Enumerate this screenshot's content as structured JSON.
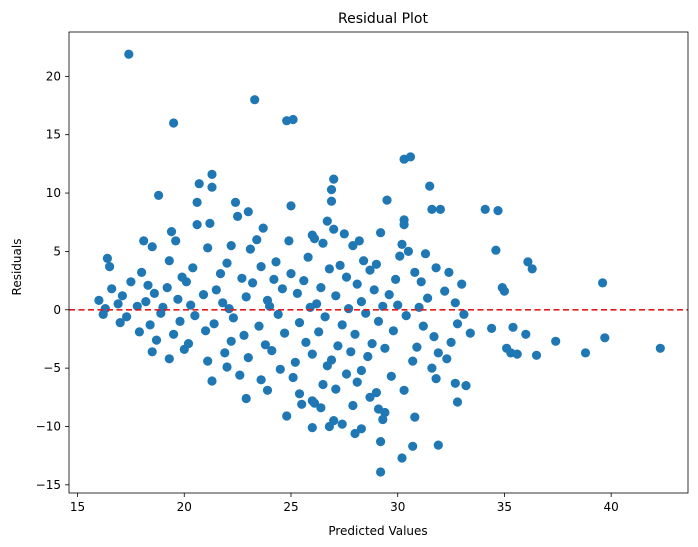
{
  "chart_data": {
    "type": "scatter",
    "title": "Residual Plot",
    "xlabel": "Predicted Values",
    "ylabel": "Residuals",
    "xlim": [
      14.6,
      43.6
    ],
    "ylim": [
      -15.7,
      23.8
    ],
    "x_ticks": [
      15,
      20,
      25,
      30,
      35,
      40
    ],
    "x_tick_labels": [
      "15",
      "20",
      "25",
      "30",
      "35",
      "40"
    ],
    "y_ticks": [
      -15,
      -10,
      -5,
      0,
      5,
      10,
      15,
      20
    ],
    "y_tick_labels": [
      "−15",
      "−10",
      "−5",
      "0",
      "5",
      "10",
      "15",
      "20"
    ],
    "grid": false,
    "point_color": "#1f77b4",
    "reference_line": {
      "y": 0,
      "style": "dashed",
      "color": "#e31a1c"
    },
    "series": [
      {
        "values_xy": [
          [
            17.4,
            21.9
          ],
          [
            23.3,
            18.0
          ],
          [
            24.8,
            16.2
          ],
          [
            25.1,
            16.3
          ],
          [
            19.5,
            16.0
          ],
          [
            30.3,
            12.9
          ],
          [
            30.6,
            13.1
          ],
          [
            21.3,
            11.6
          ],
          [
            27.0,
            11.2
          ],
          [
            21.3,
            10.5
          ],
          [
            20.7,
            10.8
          ],
          [
            26.9,
            10.3
          ],
          [
            31.5,
            10.6
          ],
          [
            18.8,
            9.8
          ],
          [
            26.9,
            9.3
          ],
          [
            22.4,
            9.2
          ],
          [
            29.5,
            9.4
          ],
          [
            20.6,
            9.2
          ],
          [
            25.0,
            8.9
          ],
          [
            32.0,
            8.6
          ],
          [
            31.6,
            8.6
          ],
          [
            34.1,
            8.6
          ],
          [
            34.7,
            8.5
          ],
          [
            22.5,
            8.0
          ],
          [
            23.0,
            8.4
          ],
          [
            23.7,
            7.0
          ],
          [
            26.7,
            7.6
          ],
          [
            30.3,
            7.7
          ],
          [
            30.3,
            7.3
          ],
          [
            21.2,
            7.4
          ],
          [
            27.0,
            6.9
          ],
          [
            20.6,
            7.3
          ],
          [
            19.4,
            6.7
          ],
          [
            29.2,
            6.6
          ],
          [
            26.0,
            6.4
          ],
          [
            26.1,
            6.1
          ],
          [
            27.5,
            6.5
          ],
          [
            28.2,
            5.9
          ],
          [
            23.4,
            6.0
          ],
          [
            24.9,
            5.9
          ],
          [
            19.6,
            5.9
          ],
          [
            18.1,
            5.9
          ],
          [
            18.5,
            5.4
          ],
          [
            22.2,
            5.5
          ],
          [
            23.1,
            5.2
          ],
          [
            30.2,
            5.6
          ],
          [
            34.6,
            5.1
          ],
          [
            27.9,
            5.5
          ],
          [
            21.1,
            5.3
          ],
          [
            26.5,
            5.7
          ],
          [
            30.5,
            5.0
          ],
          [
            30.1,
            4.6
          ],
          [
            31.3,
            4.8
          ],
          [
            16.4,
            4.4
          ],
          [
            19.3,
            4.2
          ],
          [
            22.0,
            4.0
          ],
          [
            24.3,
            4.1
          ],
          [
            28.4,
            4.2
          ],
          [
            25.8,
            4.5
          ],
          [
            36.1,
            4.1
          ],
          [
            16.5,
            3.7
          ],
          [
            36.3,
            3.5
          ],
          [
            20.4,
            3.6
          ],
          [
            23.6,
            3.7
          ],
          [
            27.3,
            3.8
          ],
          [
            29.0,
            3.9
          ],
          [
            31.8,
            3.6
          ],
          [
            32.4,
            3.2
          ],
          [
            18.0,
            3.2
          ],
          [
            21.7,
            3.1
          ],
          [
            25.0,
            3.1
          ],
          [
            26.8,
            3.5
          ],
          [
            28.7,
            3.4
          ],
          [
            30.8,
            3.2
          ],
          [
            19.9,
            2.8
          ],
          [
            22.7,
            2.7
          ],
          [
            24.2,
            2.6
          ],
          [
            27.6,
            2.8
          ],
          [
            29.9,
            2.6
          ],
          [
            17.5,
            2.4
          ],
          [
            18.3,
            2.1
          ],
          [
            20.1,
            2.4
          ],
          [
            23.2,
            2.3
          ],
          [
            25.6,
            2.5
          ],
          [
            28.1,
            2.2
          ],
          [
            31.1,
            2.4
          ],
          [
            33.0,
            2.2
          ],
          [
            39.6,
            2.3
          ],
          [
            16.6,
            1.8
          ],
          [
            19.2,
            1.9
          ],
          [
            21.5,
            1.7
          ],
          [
            24.6,
            1.8
          ],
          [
            26.4,
            1.9
          ],
          [
            28.9,
            1.7
          ],
          [
            32.2,
            1.6
          ],
          [
            34.9,
            1.9
          ],
          [
            35.0,
            1.6
          ],
          [
            17.1,
            1.2
          ],
          [
            18.6,
            1.4
          ],
          [
            20.9,
            1.3
          ],
          [
            22.9,
            1.1
          ],
          [
            25.3,
            1.4
          ],
          [
            27.1,
            1.2
          ],
          [
            29.6,
            1.3
          ],
          [
            31.4,
            1.0
          ],
          [
            16.0,
            0.8
          ],
          [
            16.9,
            0.5
          ],
          [
            18.2,
            0.7
          ],
          [
            19.7,
            0.9
          ],
          [
            21.8,
            0.6
          ],
          [
            23.9,
            0.8
          ],
          [
            26.2,
            0.5
          ],
          [
            28.3,
            0.7
          ],
          [
            30.0,
            0.4
          ],
          [
            32.7,
            0.6
          ],
          [
            16.3,
            0.1
          ],
          [
            17.8,
            0.3
          ],
          [
            19.0,
            0.2
          ],
          [
            20.3,
            0.4
          ],
          [
            22.1,
            0.1
          ],
          [
            24.0,
            0.3
          ],
          [
            25.9,
            0.2
          ],
          [
            27.7,
            0.1
          ],
          [
            29.3,
            0.3
          ],
          [
            31.0,
            0.2
          ],
          [
            16.2,
            -0.4
          ],
          [
            17.3,
            -0.6
          ],
          [
            18.9,
            -0.3
          ],
          [
            20.5,
            -0.5
          ],
          [
            22.3,
            -0.7
          ],
          [
            24.4,
            -0.4
          ],
          [
            26.6,
            -0.6
          ],
          [
            28.5,
            -0.3
          ],
          [
            30.4,
            -0.5
          ],
          [
            33.1,
            -0.4
          ],
          [
            17.0,
            -1.1
          ],
          [
            18.4,
            -1.3
          ],
          [
            19.8,
            -1.0
          ],
          [
            21.4,
            -1.2
          ],
          [
            23.5,
            -1.4
          ],
          [
            25.4,
            -1.1
          ],
          [
            27.4,
            -1.3
          ],
          [
            29.1,
            -1.0
          ],
          [
            31.2,
            -1.4
          ],
          [
            32.8,
            -1.2
          ],
          [
            34.4,
            -1.6
          ],
          [
            35.4,
            -1.5
          ],
          [
            17.9,
            -1.9
          ],
          [
            19.5,
            -2.1
          ],
          [
            21.0,
            -1.8
          ],
          [
            22.8,
            -2.2
          ],
          [
            24.7,
            -2.0
          ],
          [
            26.3,
            -1.9
          ],
          [
            28.0,
            -2.1
          ],
          [
            29.8,
            -1.8
          ],
          [
            31.7,
            -2.3
          ],
          [
            33.4,
            -2.0
          ],
          [
            36.0,
            -2.1
          ],
          [
            39.7,
            -2.4
          ],
          [
            37.4,
            -2.7
          ],
          [
            18.7,
            -2.6
          ],
          [
            20.2,
            -2.9
          ],
          [
            22.2,
            -2.7
          ],
          [
            23.8,
            -3.0
          ],
          [
            25.7,
            -2.8
          ],
          [
            27.2,
            -3.1
          ],
          [
            28.8,
            -2.9
          ],
          [
            30.9,
            -3.2
          ],
          [
            32.5,
            -2.8
          ],
          [
            35.1,
            -3.3
          ],
          [
            42.3,
            -3.3
          ],
          [
            18.5,
            -3.6
          ],
          [
            20.0,
            -3.4
          ],
          [
            21.9,
            -3.7
          ],
          [
            24.1,
            -3.5
          ],
          [
            26.0,
            -3.8
          ],
          [
            27.8,
            -3.6
          ],
          [
            29.4,
            -3.3
          ],
          [
            31.9,
            -3.7
          ],
          [
            35.3,
            -3.7
          ],
          [
            35.6,
            -3.8
          ],
          [
            36.5,
            -3.9
          ],
          [
            38.8,
            -3.7
          ],
          [
            19.3,
            -4.2
          ],
          [
            21.1,
            -4.4
          ],
          [
            23.0,
            -4.1
          ],
          [
            25.2,
            -4.5
          ],
          [
            26.9,
            -4.3
          ],
          [
            28.6,
            -4.0
          ],
          [
            30.7,
            -4.4
          ],
          [
            32.3,
            -4.2
          ],
          [
            22.0,
            -4.9
          ],
          [
            24.5,
            -5.1
          ],
          [
            26.7,
            -4.8
          ],
          [
            28.3,
            -5.2
          ],
          [
            31.6,
            -5.0
          ],
          [
            22.6,
            -5.6
          ],
          [
            25.1,
            -5.8
          ],
          [
            27.6,
            -5.5
          ],
          [
            29.7,
            -5.7
          ],
          [
            31.8,
            -5.9
          ],
          [
            21.3,
            -6.1
          ],
          [
            23.6,
            -6.0
          ],
          [
            26.5,
            -6.4
          ],
          [
            28.1,
            -6.2
          ],
          [
            32.7,
            -6.3
          ],
          [
            33.2,
            -6.5
          ],
          [
            23.9,
            -6.9
          ],
          [
            25.4,
            -7.2
          ],
          [
            27.1,
            -6.8
          ],
          [
            29.0,
            -7.1
          ],
          [
            30.3,
            -6.9
          ],
          [
            22.9,
            -7.6
          ],
          [
            26.0,
            -7.8
          ],
          [
            28.7,
            -7.5
          ],
          [
            32.8,
            -7.9
          ],
          [
            25.5,
            -8.1
          ],
          [
            26.1,
            -8.0
          ],
          [
            26.4,
            -8.4
          ],
          [
            27.9,
            -8.2
          ],
          [
            29.1,
            -8.5
          ],
          [
            29.4,
            -8.8
          ],
          [
            24.8,
            -9.1
          ],
          [
            27.0,
            -9.5
          ],
          [
            27.4,
            -9.8
          ],
          [
            29.3,
            -9.4
          ],
          [
            30.8,
            -9.2
          ],
          [
            26.0,
            -10.1
          ],
          [
            26.8,
            -10.0
          ],
          [
            28.0,
            -10.6
          ],
          [
            28.3,
            -10.2
          ],
          [
            29.2,
            -11.3
          ],
          [
            30.7,
            -11.7
          ],
          [
            31.9,
            -11.6
          ],
          [
            30.2,
            -12.7
          ],
          [
            29.2,
            -13.9
          ]
        ]
      }
    ]
  }
}
